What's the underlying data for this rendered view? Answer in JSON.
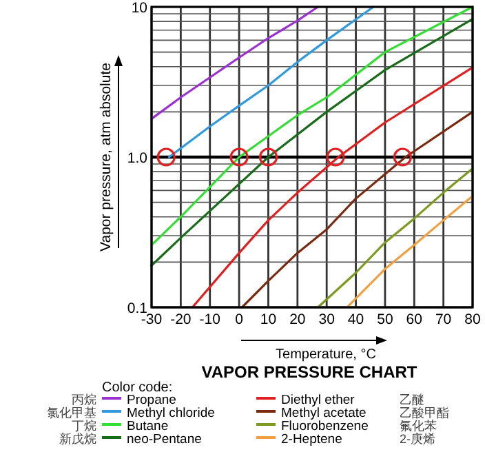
{
  "chart_data": {
    "type": "line",
    "title": "VAPOR PRESSURE CHART",
    "xlabel": "Temperature, °C",
    "ylabel": "Vapor pressure, atm absolute",
    "legend_title": "Color code:",
    "log": "y",
    "grid": true,
    "legend": "bottom",
    "line_style": "solid",
    "xlim": [
      -30,
      80
    ],
    "xticks": [
      -30,
      -20,
      -10,
      0,
      10,
      20,
      30,
      40,
      50,
      60,
      70,
      80
    ],
    "ylim": [
      0.1,
      10
    ],
    "yticks": [
      0.1,
      {
        "value": 1,
        "label": "1.0"
      },
      10
    ],
    "ref_lines": [
      {
        "axis": "y",
        "value": 1,
        "color": "#000000"
      }
    ],
    "annotations": [
      "丙烷",
      "氯化甲基",
      "丁烷",
      "新戊烷",
      "乙醚",
      "乙酸甲酯",
      "氟化苯",
      "2-庚烯"
    ],
    "series": [
      {
        "name": "Propane",
        "color": "#9b30d0",
        "x": [
          -30,
          -20,
          0,
          10,
          20,
          27
        ],
        "values": [
          1.8,
          2.5,
          4.6,
          6.2,
          8.1,
          10
        ]
      },
      {
        "name": "Methyl chloride",
        "color": "#3399dd",
        "x": [
          -24,
          -10,
          0,
          10,
          20,
          30,
          46
        ],
        "values": [
          1,
          1.6,
          2.2,
          3.0,
          4.3,
          6.0,
          10
        ]
      },
      {
        "name": "Butane",
        "color": "#33dd33",
        "x": [
          -30,
          -20,
          0,
          20,
          30,
          50,
          80
        ],
        "values": [
          0.26,
          0.4,
          1,
          1.9,
          2.5,
          5.0,
          10
        ]
      },
      {
        "name": "neo-Pentane",
        "color": "#1a6b1a",
        "x": [
          -30,
          -20,
          10,
          30,
          50,
          80
        ],
        "values": [
          0.19,
          0.29,
          1,
          2.0,
          3.8,
          8.3
        ]
      },
      {
        "name": "Diethyl ether",
        "color": "#e02020",
        "x": [
          -16,
          0,
          10,
          20,
          34,
          50,
          80
        ],
        "values": [
          0.1,
          0.23,
          0.38,
          0.58,
          1,
          1.7,
          3.95
        ]
      },
      {
        "name": "Methyl acetate",
        "color": "#7a2a10",
        "x": [
          1,
          10,
          20,
          30,
          40,
          57,
          80
        ],
        "values": [
          0.1,
          0.15,
          0.23,
          0.33,
          0.53,
          1,
          2.0
        ]
      },
      {
        "name": "Fluorobenzene",
        "color": "#7a9a20",
        "x": [
          27,
          40,
          50,
          60,
          70,
          80
        ],
        "values": [
          0.1,
          0.17,
          0.27,
          0.39,
          0.58,
          0.84
        ]
      },
      {
        "name": "2-Heptene",
        "color": "#f0a040",
        "x": [
          37,
          50,
          60,
          70,
          80
        ],
        "values": [
          0.1,
          0.18,
          0.26,
          0.38,
          0.55
        ]
      },
      {
        "type": "scatter",
        "marker": "circle",
        "color": "#e02020",
        "x": [
          -25,
          0,
          10,
          33,
          56
        ],
        "values": [
          1,
          1,
          1,
          1,
          1
        ]
      }
    ]
  }
}
